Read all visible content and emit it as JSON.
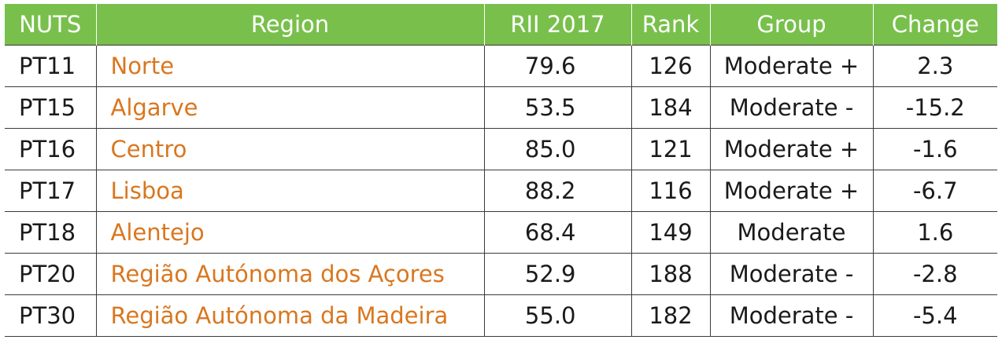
{
  "table": {
    "headers": {
      "nuts": "NUTS",
      "region": "Region",
      "rii": "RII 2017",
      "rank": "Rank",
      "group": "Group",
      "change": "Change"
    },
    "rows": [
      {
        "nuts": "PT11",
        "region": "Norte",
        "rii": "79.6",
        "rank": "126",
        "group": "Moderate +",
        "change": "2.3"
      },
      {
        "nuts": "PT15",
        "region": "Algarve",
        "rii": "53.5",
        "rank": "184",
        "group": "Moderate -",
        "change": "-15.2"
      },
      {
        "nuts": "PT16",
        "region": "Centro",
        "rii": "85.0",
        "rank": "121",
        "group": "Moderate +",
        "change": "-1.6"
      },
      {
        "nuts": "PT17",
        "region": "Lisboa",
        "rii": "88.2",
        "rank": "116",
        "group": "Moderate +",
        "change": "-6.7"
      },
      {
        "nuts": "PT18",
        "region": "Alentejo",
        "rii": "68.4",
        "rank": "149",
        "group": "Moderate",
        "change": "1.6"
      },
      {
        "nuts": "PT20",
        "region": "Região Autónoma dos Açores",
        "rii": "52.9",
        "rank": "188",
        "group": "Moderate -",
        "change": "-2.8"
      },
      {
        "nuts": "PT30",
        "region": "Região Autónoma da Madeira",
        "rii": "55.0",
        "rank": "182",
        "group": "Moderate -",
        "change": "-5.4"
      }
    ]
  },
  "colors": {
    "header_bg": "#78c04b",
    "header_text": "#ffffff",
    "region_text": "#d9771f",
    "body_text": "#1a1a1a"
  }
}
